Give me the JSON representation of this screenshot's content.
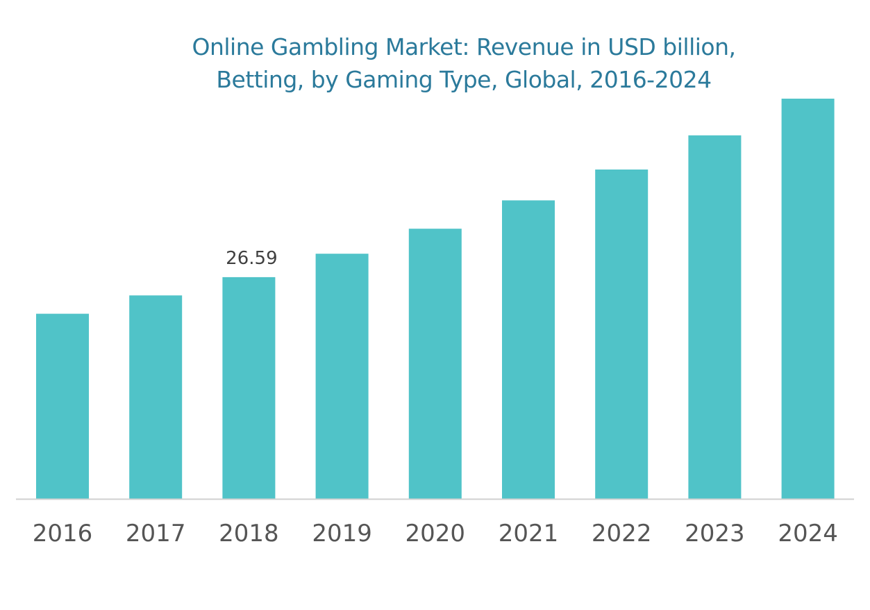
{
  "chart_data": {
    "type": "bar",
    "title_lines": [
      "Online Gambling Market: Revenue in USD billion,",
      "Betting, by Gaming Type, Global, 2016-2024"
    ],
    "categories": [
      "2016",
      "2017",
      "2018",
      "2019",
      "2020",
      "2021",
      "2022",
      "2023",
      "2024"
    ],
    "values": [
      22.2,
      24.4,
      26.59,
      29.4,
      32.4,
      35.8,
      39.5,
      43.6,
      48.0
    ],
    "data_labels": [
      {
        "category": "2018",
        "text": "26.59"
      }
    ],
    "ylim": [
      0,
      50
    ],
    "grid": false,
    "legend": "none",
    "bar_color": "#50c3c8",
    "axis_color": "#d0d0d0"
  }
}
